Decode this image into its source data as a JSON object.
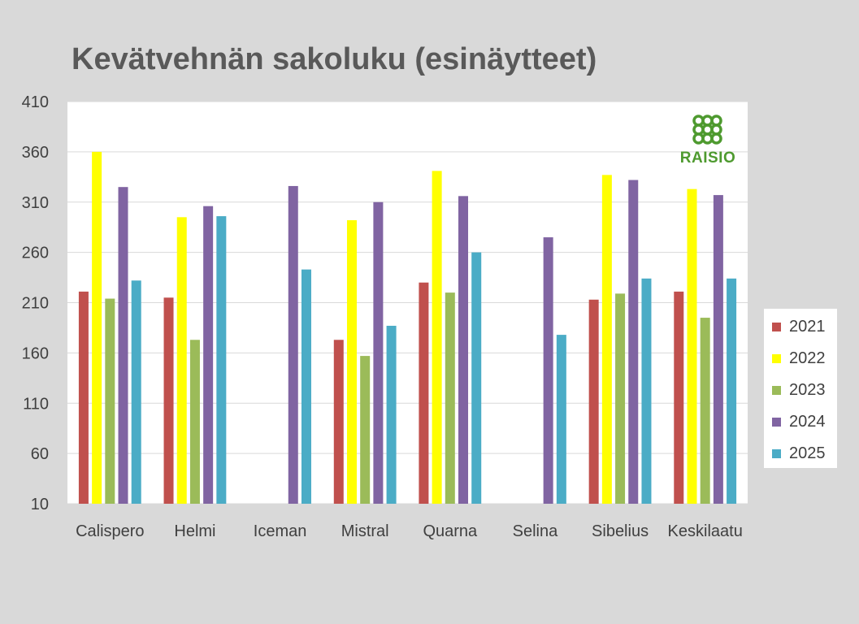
{
  "chart_data": {
    "type": "bar",
    "title": "Kevätvehnän sakoluku (esinäytteet)",
    "categories": [
      "Calispero",
      "Helmi",
      "Iceman",
      "Mistral",
      "Quarna",
      "Selina",
      "Sibelius",
      "Keskilaatu"
    ],
    "yticks": [
      "410",
      "360",
      "310",
      "260",
      "210",
      "160",
      "110",
      "60",
      "10"
    ],
    "ylim": [
      10,
      410
    ],
    "grid": true,
    "legend_position": "right",
    "series": [
      {
        "name": "2021",
        "color": "#c0504d",
        "values": [
          221,
          215,
          null,
          173,
          230,
          null,
          213,
          221
        ]
      },
      {
        "name": "2022",
        "color": "#ffff00",
        "values": [
          360,
          295,
          null,
          292,
          341,
          null,
          337,
          323
        ]
      },
      {
        "name": "2023",
        "color": "#9bbb59",
        "values": [
          214,
          173,
          null,
          157,
          220,
          null,
          219,
          195
        ]
      },
      {
        "name": "2024",
        "color": "#8064a2",
        "values": [
          325,
          306,
          null,
          310,
          316,
          null,
          332,
          317
        ]
      },
      {
        "name": "2025",
        "color": "#4bacc6",
        "values": [
          232,
          296,
          null,
          187,
          260,
          null,
          234,
          234
        ]
      }
    ],
    "series_with_extra": {
      "2024": [
        325,
        306,
        326,
        310,
        316,
        275,
        332,
        317
      ],
      "2025": [
        232,
        296,
        243,
        187,
        260,
        178,
        234,
        234
      ]
    }
  },
  "logo": {
    "text": "RAISIO",
    "color": "#4e9a2f"
  }
}
